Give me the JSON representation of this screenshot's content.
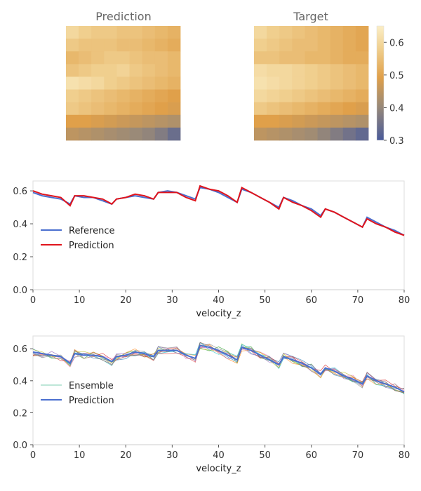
{
  "figure": {
    "heatmap_titles": [
      "Prediction",
      "Target"
    ],
    "x_axis_label": "velocity_z"
  },
  "colors": {
    "reference": "#4a6fcf",
    "prediction_red": "#e0141c",
    "prediction_blue": "#4a6fcf",
    "axis": "#cccccc",
    "title_gray": "#666666"
  },
  "chart_data": [
    {
      "type": "heatmap",
      "title": "Prediction",
      "rows": 9,
      "cols": 9,
      "values": [
        [
          0.6,
          0.58,
          0.57,
          0.57,
          0.56,
          0.56,
          0.55,
          0.54,
          0.53
        ],
        [
          0.57,
          0.56,
          0.56,
          0.56,
          0.55,
          0.55,
          0.54,
          0.53,
          0.52
        ],
        [
          0.54,
          0.55,
          0.56,
          0.57,
          0.57,
          0.56,
          0.55,
          0.55,
          0.54
        ],
        [
          0.56,
          0.57,
          0.58,
          0.58,
          0.59,
          0.57,
          0.56,
          0.55,
          0.54
        ],
        [
          0.62,
          0.61,
          0.6,
          0.58,
          0.57,
          0.56,
          0.55,
          0.54,
          0.53
        ],
        [
          0.58,
          0.57,
          0.56,
          0.55,
          0.54,
          0.53,
          0.52,
          0.51,
          0.5
        ],
        [
          0.57,
          0.56,
          0.55,
          0.54,
          0.53,
          0.52,
          0.51,
          0.5,
          0.49
        ],
        [
          0.5,
          0.5,
          0.49,
          0.48,
          0.47,
          0.46,
          0.45,
          0.44,
          0.43
        ],
        [
          0.45,
          0.44,
          0.43,
          0.42,
          0.41,
          0.4,
          0.39,
          0.37,
          0.34
        ]
      ]
    },
    {
      "type": "heatmap",
      "title": "Target",
      "rows": 9,
      "cols": 9,
      "values": [
        [
          0.6,
          0.58,
          0.57,
          0.56,
          0.55,
          0.54,
          0.53,
          0.52,
          0.51
        ],
        [
          0.58,
          0.57,
          0.56,
          0.55,
          0.55,
          0.54,
          0.53,
          0.52,
          0.51
        ],
        [
          0.56,
          0.56,
          0.55,
          0.55,
          0.54,
          0.54,
          0.53,
          0.52,
          0.52
        ],
        [
          0.61,
          0.6,
          0.6,
          0.59,
          0.58,
          0.57,
          0.56,
          0.55,
          0.54
        ],
        [
          0.62,
          0.61,
          0.6,
          0.59,
          0.58,
          0.57,
          0.56,
          0.55,
          0.54
        ],
        [
          0.6,
          0.59,
          0.58,
          0.57,
          0.56,
          0.55,
          0.54,
          0.53,
          0.52
        ],
        [
          0.57,
          0.56,
          0.55,
          0.54,
          0.53,
          0.52,
          0.51,
          0.5,
          0.49
        ],
        [
          0.5,
          0.5,
          0.49,
          0.48,
          0.47,
          0.46,
          0.45,
          0.44,
          0.43
        ],
        [
          0.45,
          0.44,
          0.43,
          0.42,
          0.41,
          0.39,
          0.37,
          0.35,
          0.33
        ]
      ]
    },
    {
      "type": "line",
      "xlabel": "velocity_z",
      "xlim": [
        0,
        80
      ],
      "ylim": [
        0.0,
        0.66
      ],
      "xticks": [
        0,
        10,
        20,
        30,
        40,
        50,
        60,
        70,
        80
      ],
      "yticks": [
        0.0,
        0.2,
        0.4,
        0.6
      ],
      "legend_position": "center-left",
      "series": [
        {
          "name": "Reference",
          "color": "#4a6fcf",
          "x": [
            0,
            2,
            4,
            6,
            8,
            9,
            11,
            13,
            15,
            17,
            18,
            20,
            22,
            24,
            26,
            27,
            29,
            31,
            33,
            35,
            36,
            38,
            40,
            42,
            44,
            45,
            47,
            49,
            51,
            53,
            54,
            56,
            58,
            60,
            62,
            63,
            65,
            67,
            69,
            71,
            72,
            74,
            76,
            78,
            80
          ],
          "y": [
            0.59,
            0.57,
            0.56,
            0.55,
            0.52,
            0.57,
            0.56,
            0.56,
            0.54,
            0.52,
            0.55,
            0.56,
            0.57,
            0.56,
            0.55,
            0.59,
            0.6,
            0.59,
            0.57,
            0.55,
            0.62,
            0.61,
            0.59,
            0.56,
            0.53,
            0.61,
            0.59,
            0.56,
            0.53,
            0.5,
            0.56,
            0.54,
            0.51,
            0.49,
            0.45,
            0.49,
            0.47,
            0.44,
            0.41,
            0.38,
            0.44,
            0.41,
            0.38,
            0.36,
            0.33
          ]
        },
        {
          "name": "Prediction",
          "color": "#e0141c",
          "x": [
            0,
            2,
            4,
            6,
            8,
            9,
            11,
            13,
            15,
            17,
            18,
            20,
            22,
            24,
            26,
            27,
            29,
            31,
            33,
            35,
            36,
            38,
            40,
            42,
            44,
            45,
            47,
            49,
            51,
            53,
            54,
            56,
            58,
            60,
            62,
            63,
            65,
            67,
            69,
            71,
            72,
            74,
            76,
            78,
            80
          ],
          "y": [
            0.6,
            0.58,
            0.57,
            0.56,
            0.51,
            0.57,
            0.57,
            0.56,
            0.55,
            0.52,
            0.55,
            0.56,
            0.58,
            0.57,
            0.55,
            0.59,
            0.59,
            0.59,
            0.56,
            0.54,
            0.63,
            0.61,
            0.6,
            0.57,
            0.53,
            0.62,
            0.59,
            0.56,
            0.53,
            0.49,
            0.56,
            0.53,
            0.51,
            0.48,
            0.44,
            0.49,
            0.47,
            0.44,
            0.41,
            0.38,
            0.43,
            0.4,
            0.38,
            0.35,
            0.33
          ]
        }
      ]
    },
    {
      "type": "line",
      "xlabel": "velocity_z",
      "xlim": [
        0,
        80
      ],
      "ylim": [
        0.0,
        0.68
      ],
      "xticks": [
        0,
        10,
        20,
        30,
        40,
        50,
        60,
        70,
        80
      ],
      "yticks": [
        0.0,
        0.2,
        0.4,
        0.6
      ],
      "legend_position": "center-left",
      "ensemble_members": 10,
      "series": [
        {
          "name": "Ensemble",
          "color": "#7ecfb0"
        },
        {
          "name": "Prediction",
          "color": "#4a6fcf",
          "x": [
            0,
            2,
            4,
            6,
            8,
            9,
            11,
            13,
            15,
            17,
            18,
            20,
            22,
            24,
            26,
            27,
            29,
            31,
            33,
            35,
            36,
            38,
            40,
            42,
            44,
            45,
            47,
            49,
            51,
            53,
            54,
            56,
            58,
            60,
            62,
            63,
            65,
            67,
            69,
            71,
            72,
            74,
            76,
            78,
            80
          ],
          "y": [
            0.58,
            0.57,
            0.56,
            0.55,
            0.51,
            0.57,
            0.56,
            0.56,
            0.55,
            0.52,
            0.55,
            0.56,
            0.58,
            0.57,
            0.55,
            0.59,
            0.59,
            0.59,
            0.56,
            0.54,
            0.62,
            0.61,
            0.59,
            0.56,
            0.53,
            0.61,
            0.59,
            0.56,
            0.53,
            0.5,
            0.55,
            0.53,
            0.51,
            0.48,
            0.44,
            0.48,
            0.46,
            0.43,
            0.41,
            0.38,
            0.43,
            0.4,
            0.38,
            0.36,
            0.33
          ]
        }
      ],
      "ensemble_colors": [
        "#2ca02c",
        "#1f77b4",
        "#ff7f0e",
        "#d62728",
        "#9467bd",
        "#e377c2",
        "#bcbd22",
        "#17becf",
        "#8c564b",
        "#7f7f7f"
      ]
    }
  ]
}
